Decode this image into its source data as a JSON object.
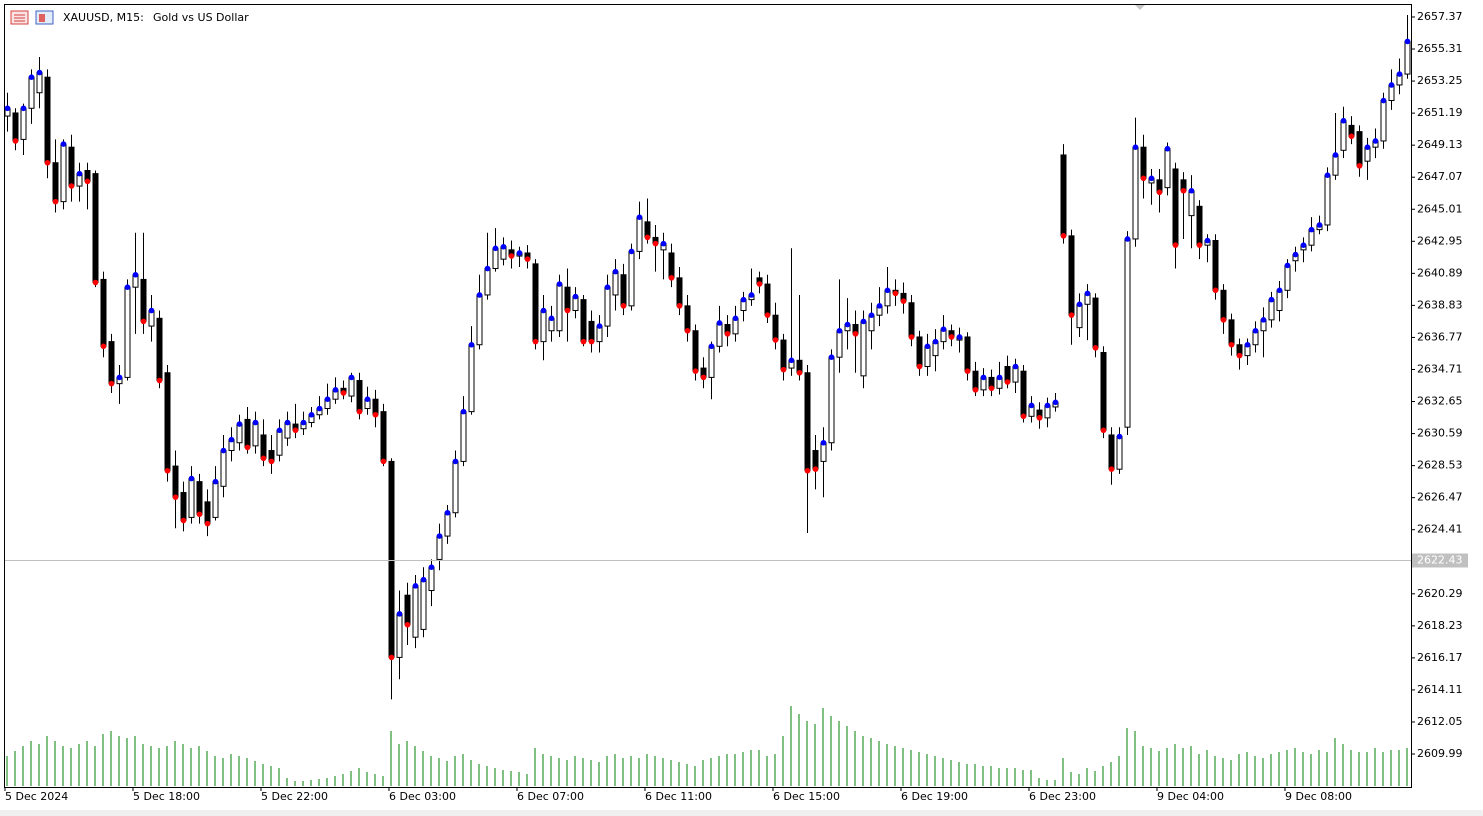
{
  "chart_data": {
    "type": "candlestick",
    "symbol": "XAUUSD, M15:",
    "title": "Gold vs US Dollar",
    "up_color": "#ffffff",
    "down_color": "#000000",
    "volume_color": "#008000",
    "dots": {
      "up_color": "#0000ff",
      "down_color": "#ff0000"
    },
    "grid": false,
    "price_line": 2622.43,
    "ylim": [
      2607.87,
      2658.14
    ],
    "yticks": [
      2657.37,
      2655.31,
      2653.25,
      2651.19,
      2649.13,
      2647.07,
      2645.01,
      2642.95,
      2640.89,
      2638.83,
      2636.77,
      2634.71,
      2632.65,
      2630.59,
      2628.53,
      2626.47,
      2624.41,
      2620.29,
      2618.23,
      2616.17,
      2614.11,
      2612.05,
      2609.99
    ],
    "xticks": [
      {
        "value": 0,
        "label": "5 Dec 2024"
      },
      {
        "value": 16,
        "label": "5 Dec 18:00"
      },
      {
        "value": 32,
        "label": "5 Dec 22:00"
      },
      {
        "value": 48,
        "label": "6 Dec 03:00"
      },
      {
        "value": 64,
        "label": "6 Dec 07:00"
      },
      {
        "value": 80,
        "label": "6 Dec 11:00"
      },
      {
        "value": 96,
        "label": "6 Dec 15:00"
      },
      {
        "value": 112,
        "label": "6 Dec 19:00"
      },
      {
        "value": 128,
        "label": "6 Dec 23:00"
      },
      {
        "value": 144,
        "label": "9 Dec 04:00"
      },
      {
        "value": 160,
        "label": "9 Dec 08:00"
      }
    ],
    "open": [
      2651.0,
      2651.2,
      2649.5,
      2651.5,
      2652.5,
      2653.5,
      2648.0,
      2645.5,
      2649.0,
      2646.5,
      2647.5,
      2647.3,
      2640.5,
      2636.5,
      2633.8,
      2634.2,
      2640.0,
      2640.5,
      2637.5,
      2638.0,
      2634.5,
      2628.5,
      2626.8,
      2625.2,
      2627.5,
      2626.2,
      2625.2,
      2627.2,
      2629.5,
      2630.0,
      2631.5,
      2629.8,
      2630.5,
      2629.5,
      2629.2,
      2630.3,
      2631.2,
      2630.9,
      2631.3,
      2631.8,
      2632.2,
      2632.8,
      2633.5,
      2633.0,
      2634.0,
      2632.2,
      2632.8,
      2632.0,
      2628.8,
      2616.2,
      2620.2,
      2617.5,
      2618.0,
      2620.5,
      2622.5,
      2624.0,
      2625.5,
      2628.8,
      2632.0,
      2636.3,
      2639.5,
      2641.2,
      2641.8,
      2642.4,
      2642.0,
      2642.2,
      2641.5,
      2636.5,
      2637.2,
      2637.2,
      2640.0,
      2638.5,
      2639.2,
      2637.8,
      2636.5,
      2637.5,
      2639.5,
      2640.8,
      2638.8,
      2642.3,
      2644.2,
      2643.2,
      2642.4,
      2642.2,
      2640.6,
      2638.8,
      2637.2,
      2634.8,
      2634.2,
      2636.2,
      2637.6,
      2637.0,
      2638.5,
      2639.2,
      2640.6,
      2640.2,
      2638.2,
      2636.6,
      2634.8,
      2635.3,
      2634.5,
      2629.5,
      2628.8,
      2630.0,
      2635.5,
      2637.2,
      2637.6,
      2634.3,
      2637.2,
      2638.2,
      2638.8,
      2639.8,
      2639.6,
      2639.0,
      2636.8,
      2634.9,
      2635.6,
      2636.5,
      2637.2,
      2636.6,
      2636.8,
      2634.6,
      2633.4,
      2634.2,
      2633.5,
      2634.9,
      2633.9,
      2634.6,
      2631.7,
      2632.1,
      2631.6,
      2632.3,
      2648.5,
      2643.3,
      2637.4,
      2638.9,
      2639.3,
      2635.8,
      2630.5,
      2628.3,
      2631.0,
      2643.1,
      2649.0,
      2646.7,
      2646.9,
      2646.4,
      2647.6,
      2646.9,
      2644.6,
      2645.2,
      2642.7,
      2643.0,
      2639.8,
      2637.9,
      2636.3,
      2635.6,
      2636.3,
      2637.2,
      2637.9,
      2638.5,
      2639.8,
      2641.7,
      2642.4,
      2642.7,
      2643.7,
      2644.0,
      2647.2,
      2648.8,
      2650.4,
      2650.0,
      2648.1,
      2649.0,
      2649.4,
      2652.0,
      2653.0,
      2653.7
    ],
    "high": [
      2652.5,
      2651.5,
      2651.8,
      2654.0,
      2654.8,
      2654.0,
      2649.5,
      2649.5,
      2649.8,
      2648.0,
      2648.0,
      2647.5,
      2641.0,
      2637.0,
      2635.0,
      2640.5,
      2643.5,
      2643.5,
      2639.5,
      2638.5,
      2635.0,
      2629.5,
      2627.5,
      2628.5,
      2628.0,
      2627.0,
      2628.5,
      2630.5,
      2631.0,
      2631.8,
      2632.3,
      2632.0,
      2631.5,
      2630.5,
      2631.5,
      2632.0,
      2632.5,
      2632.0,
      2632.3,
      2633.0,
      2633.8,
      2634.2,
      2634.0,
      2634.5,
      2634.5,
      2633.6,
      2633.4,
      2632.5,
      2629.0,
      2620.5,
      2621.0,
      2621.5,
      2622.0,
      2622.5,
      2624.8,
      2626.0,
      2629.5,
      2633.0,
      2637.5,
      2640.8,
      2643.5,
      2643.8,
      2643.2,
      2643.0,
      2642.6,
      2642.7,
      2641.8,
      2639.5,
      2638.8,
      2640.8,
      2641.2,
      2640.0,
      2639.5,
      2638.5,
      2638.2,
      2640.8,
      2641.8,
      2641.5,
      2642.8,
      2645.5,
      2645.7,
      2644.0,
      2643.5,
      2642.8,
      2641.3,
      2639.5,
      2637.6,
      2635.5,
      2636.5,
      2638.8,
      2638.2,
      2638.8,
      2639.7,
      2641.2,
      2641.0,
      2640.8,
      2639.0,
      2637.0,
      2642.5,
      2639.5,
      2635.0,
      2630.5,
      2631.0,
      2636.0,
      2640.5,
      2639.3,
      2638.5,
      2638.5,
      2639.0,
      2640.0,
      2641.3,
      2640.5,
      2640.3,
      2639.5,
      2637.2,
      2637.0,
      2637.3,
      2638.2,
      2637.6,
      2637.4,
      2637.1,
      2635.2,
      2634.8,
      2634.7,
      2635.2,
      2635.6,
      2635.4,
      2635.0,
      2633.0,
      2632.6,
      2632.9,
      2633.2,
      2649.2,
      2643.7,
      2639.6,
      2640.2,
      2639.6,
      2636.2,
      2631.0,
      2631.0,
      2643.6,
      2650.9,
      2649.8,
      2647.6,
      2647.6,
      2649.3,
      2648.0,
      2647.4,
      2647.2,
      2645.6,
      2643.4,
      2643.4,
      2640.2,
      2638.3,
      2636.7,
      2636.7,
      2637.8,
      2638.7,
      2639.7,
      2640.4,
      2641.8,
      2642.6,
      2643.2,
      2644.5,
      2644.6,
      2647.7,
      2651.2,
      2651.6,
      2651.0,
      2650.4,
      2649.6,
      2650.2,
      2652.5,
      2654.0,
      2654.7,
      2657.5
    ],
    "low": [
      2650.0,
      2648.8,
      2648.5,
      2650.5,
      2651.5,
      2647.0,
      2644.8,
      2645.0,
      2645.5,
      2645.5,
      2645.0,
      2640.0,
      2635.5,
      2633.2,
      2632.5,
      2634.0,
      2637.0,
      2637.0,
      2636.5,
      2633.5,
      2627.5,
      2624.5,
      2624.3,
      2624.8,
      2624.8,
      2624.0,
      2625.0,
      2626.5,
      2628.8,
      2629.5,
      2629.3,
      2629.3,
      2628.5,
      2628.0,
      2628.8,
      2629.8,
      2630.3,
      2630.5,
      2631.0,
      2631.5,
      2631.8,
      2632.5,
      2632.8,
      2632.6,
      2631.5,
      2631.8,
      2631.0,
      2628.5,
      2613.5,
      2614.8,
      2617.0,
      2616.8,
      2617.5,
      2619.5,
      2621.8,
      2623.5,
      2625.2,
      2628.5,
      2631.8,
      2636.0,
      2639.2,
      2641.0,
      2641.4,
      2641.2,
      2641.3,
      2641.2,
      2636.0,
      2635.3,
      2636.5,
      2636.8,
      2636.5,
      2638.0,
      2636.2,
      2635.8,
      2635.8,
      2636.8,
      2638.5,
      2638.2,
      2638.5,
      2641.8,
      2642.8,
      2641.0,
      2640.5,
      2640.0,
      2638.2,
      2636.5,
      2634.0,
      2633.5,
      2632.8,
      2635.8,
      2636.2,
      2636.5,
      2637.8,
      2638.8,
      2639.6,
      2637.7,
      2636.0,
      2634.0,
      2634.3,
      2634.0,
      2624.2,
      2627.0,
      2626.5,
      2629.5,
      2634.5,
      2636.0,
      2634.5,
      2633.5,
      2636.0,
      2637.5,
      2638.3,
      2638.8,
      2638.3,
      2636.2,
      2634.3,
      2634.3,
      2634.6,
      2636.0,
      2636.2,
      2635.8,
      2634.0,
      2633.0,
      2633.0,
      2633.0,
      2633.1,
      2633.5,
      2633.2,
      2631.3,
      2631.3,
      2630.9,
      2631.0,
      2632.0,
      2642.8,
      2636.3,
      2636.8,
      2636.6,
      2635.5,
      2630.3,
      2627.3,
      2628.0,
      2630.5,
      2642.6,
      2645.7,
      2645.3,
      2644.8,
      2645.9,
      2641.2,
      2643.1,
      2642.5,
      2641.8,
      2641.6,
      2639.2,
      2637.0,
      2635.6,
      2634.7,
      2635.0,
      2635.8,
      2635.5,
      2637.4,
      2637.8,
      2639.3,
      2641.0,
      2641.6,
      2642.3,
      2643.4,
      2643.6,
      2646.9,
      2648.3,
      2649.2,
      2647.1,
      2646.9,
      2648.3,
      2648.9,
      2651.4,
      2652.4,
      2653.4
    ],
    "close": [
      2651.5,
      2649.4,
      2651.5,
      2653.5,
      2653.8,
      2648.0,
      2645.5,
      2649.2,
      2646.5,
      2647.3,
      2646.8,
      2640.3,
      2636.2,
      2633.8,
      2634.2,
      2640.0,
      2640.8,
      2637.8,
      2638.5,
      2634.0,
      2628.2,
      2626.5,
      2625.0,
      2627.7,
      2625.4,
      2624.8,
      2627.5,
      2629.5,
      2630.2,
      2631.2,
      2629.7,
      2631.3,
      2629.0,
      2628.8,
      2630.8,
      2631.3,
      2630.8,
      2631.3,
      2631.8,
      2632.2,
      2632.8,
      2633.4,
      2633.2,
      2634.2,
      2632.0,
      2632.8,
      2631.8,
      2628.8,
      2616.2,
      2619.0,
      2618.3,
      2620.8,
      2621.2,
      2622.0,
      2624.0,
      2625.5,
      2628.8,
      2632.0,
      2636.3,
      2639.5,
      2641.2,
      2642.5,
      2642.6,
      2642.0,
      2642.2,
      2641.8,
      2636.5,
      2638.5,
      2638.0,
      2640.2,
      2638.5,
      2639.4,
      2636.5,
      2636.5,
      2637.5,
      2640.0,
      2641.0,
      2638.8,
      2642.3,
      2644.5,
      2643.2,
      2642.8,
      2642.8,
      2640.6,
      2638.8,
      2637.2,
      2634.6,
      2634.2,
      2636.2,
      2637.7,
      2637.0,
      2638.0,
      2639.2,
      2639.5,
      2640.2,
      2638.2,
      2636.6,
      2634.7,
      2635.3,
      2634.5,
      2628.2,
      2628.3,
      2630.0,
      2635.5,
      2637.2,
      2637.6,
      2637.0,
      2637.8,
      2638.2,
      2638.8,
      2639.8,
      2639.6,
      2639.1,
      2636.8,
      2634.9,
      2636.2,
      2636.5,
      2637.3,
      2636.8,
      2636.8,
      2634.6,
      2633.4,
      2634.2,
      2633.5,
      2634.2,
      2633.9,
      2634.9,
      2631.7,
      2632.4,
      2631.6,
      2632.4,
      2632.6,
      2643.3,
      2638.2,
      2638.9,
      2639.6,
      2636.1,
      2630.8,
      2628.3,
      2630.4,
      2643.1,
      2649.0,
      2647.0,
      2647.0,
      2646.1,
      2648.9,
      2642.7,
      2646.2,
      2646.2,
      2642.7,
      2643.0,
      2639.8,
      2637.9,
      2636.3,
      2635.6,
      2636.3,
      2637.2,
      2637.9,
      2639.2,
      2639.8,
      2641.4,
      2642.1,
      2642.7,
      2643.7,
      2644.0,
      2647.2,
      2648.5,
      2650.7,
      2649.7,
      2647.8,
      2649.0,
      2649.4,
      2652.0,
      2653.0,
      2653.7,
      2655.8
    ],
    "volume": [
      30,
      35,
      40,
      45,
      42,
      50,
      45,
      40,
      38,
      42,
      45,
      40,
      52,
      55,
      50,
      48,
      50,
      42,
      40,
      38,
      40,
      45,
      42,
      38,
      40,
      35,
      30,
      28,
      32,
      30,
      28,
      25,
      22,
      20,
      18,
      8,
      5,
      5,
      6,
      7,
      8,
      10,
      12,
      15,
      18,
      14,
      12,
      10,
      55,
      42,
      45,
      40,
      35,
      30,
      28,
      25,
      30,
      32,
      26,
      22,
      20,
      18,
      16,
      15,
      14,
      12,
      38,
      32,
      30,
      28,
      26,
      30,
      28,
      26,
      24,
      30,
      32,
      28,
      30,
      28,
      32,
      30,
      28,
      26,
      24,
      22,
      20,
      26,
      28,
      30,
      32,
      32,
      34,
      36,
      36,
      30,
      32,
      50,
      80,
      72,
      65,
      62,
      78,
      70,
      65,
      60,
      55,
      50,
      48,
      45,
      42,
      40,
      38,
      36,
      34,
      32,
      30,
      28,
      26,
      24,
      22,
      22,
      20,
      20,
      18,
      18,
      18,
      16,
      16,
      8,
      6,
      6,
      28,
      14,
      12,
      18,
      15,
      20,
      24,
      30,
      58,
      55,
      40,
      38,
      35,
      38,
      42,
      38,
      40,
      32,
      36,
      30,
      28,
      26,
      32,
      34,
      30,
      28,
      32,
      34,
      36,
      38,
      34,
      32,
      36,
      34,
      48,
      42,
      36,
      34,
      34,
      38,
      34,
      36,
      36,
      38
    ]
  }
}
